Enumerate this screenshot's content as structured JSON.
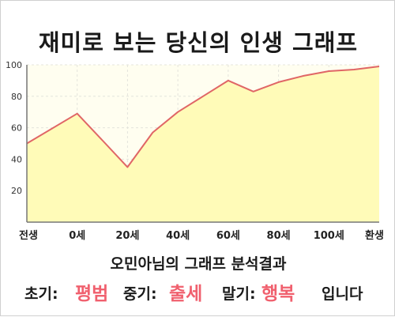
{
  "title": "재미로 보는 당신의 인생 그래프",
  "subtitle": "오민아님의 그래프 분석결과",
  "result": {
    "early_label": "초기:",
    "early_value": "평범",
    "middle_label": "중기:",
    "middle_value": "출세",
    "late_label": "말기:",
    "late_value": "행복",
    "suffix": "입니다"
  },
  "colors": {
    "line": "#e06666",
    "fill": "#fffbb8",
    "plot_bg": "#fffef0",
    "highlight": "#f0606e"
  },
  "chart_data": {
    "type": "area",
    "title": "재미로 보는 당신의 인생 그래프",
    "xlabel": "",
    "ylabel": "",
    "categories": [
      "전생",
      "0세",
      "20세",
      "40세",
      "60세",
      "80세",
      "100세",
      "환생"
    ],
    "series": [
      {
        "x": [
          -20,
          0,
          10,
          20,
          30,
          40,
          50,
          60,
          70,
          80,
          90,
          100,
          110,
          120
        ],
        "values": [
          50,
          69,
          52,
          35,
          57,
          70,
          80,
          90,
          83,
          89,
          93,
          96,
          97,
          99
        ]
      }
    ],
    "xlim": [
      -20,
      120
    ],
    "ylim": [
      0,
      100
    ],
    "yticks": [
      20,
      40,
      60,
      80,
      100
    ],
    "grid": true,
    "legend": "none"
  }
}
